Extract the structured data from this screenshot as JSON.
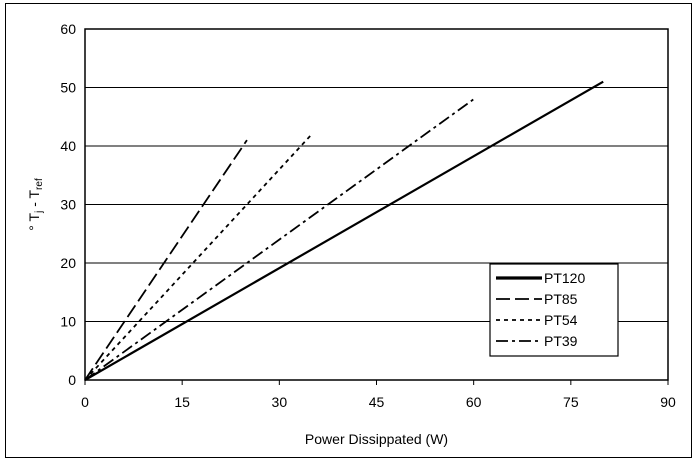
{
  "chart_data": {
    "type": "line",
    "title": "",
    "xlabel": "Power Dissippated (W)",
    "ylabel": "° Tj - Tref",
    "ylabel_parts": {
      "prefix": "° T",
      "sub1": "j",
      "middle": " - T",
      "sub2": "ref"
    },
    "xlim": [
      0,
      90
    ],
    "ylim": [
      0,
      60
    ],
    "xticks": [
      "0",
      "15",
      "30",
      "45",
      "60",
      "75",
      "90"
    ],
    "yticks": [
      "0",
      "10",
      "20",
      "30",
      "40",
      "50",
      "60"
    ],
    "grid": "horizontal",
    "legend_position": "lower right",
    "series": [
      {
        "name": "PT120",
        "dash": "solid",
        "x": [
          0,
          80
        ],
        "y": [
          0,
          51
        ]
      },
      {
        "name": "PT85",
        "dash": "longdash",
        "x": [
          0,
          25
        ],
        "y": [
          0,
          41
        ]
      },
      {
        "name": "PT54",
        "dash": "dotted",
        "x": [
          0,
          35
        ],
        "y": [
          0,
          42
        ]
      },
      {
        "name": "PT39",
        "dash": "dashdot",
        "x": [
          0,
          60
        ],
        "y": [
          0,
          48
        ]
      }
    ]
  }
}
